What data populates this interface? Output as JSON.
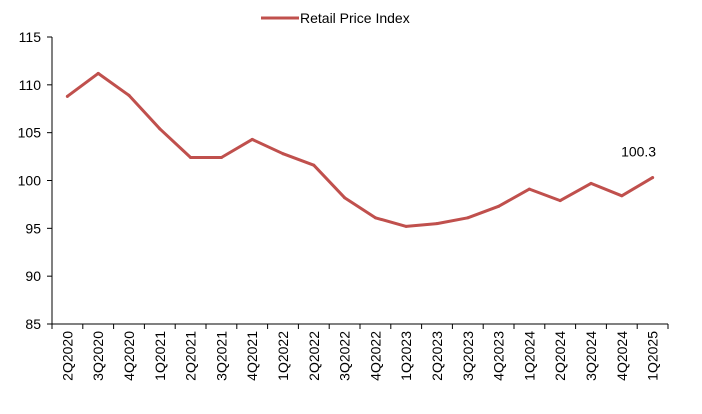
{
  "chart_data": {
    "type": "line",
    "title": "",
    "xlabel": "",
    "ylabel": "",
    "categories": [
      "2Q2020",
      "3Q2020",
      "4Q2020",
      "1Q2021",
      "2Q2021",
      "3Q2021",
      "4Q2021",
      "1Q2022",
      "2Q2022",
      "3Q2022",
      "4Q2022",
      "1Q2023",
      "2Q2023",
      "3Q2023",
      "4Q2023",
      "1Q2024",
      "2Q2024",
      "3Q2024",
      "4Q2024",
      "1Q2025"
    ],
    "series": [
      {
        "name": "Retail Price Index",
        "color": "#C0504D",
        "values": [
          108.8,
          111.2,
          108.9,
          105.4,
          102.4,
          102.4,
          104.3,
          102.8,
          101.6,
          98.2,
          96.1,
          95.2,
          95.5,
          96.1,
          97.3,
          99.1,
          97.9,
          99.7,
          98.4,
          100.3
        ]
      }
    ],
    "ylim": [
      85,
      115
    ],
    "yticks": [
      85,
      90,
      95,
      100,
      105,
      110,
      115
    ],
    "grid": false,
    "legend_position": "top-center",
    "annotations": [
      {
        "series_index": 0,
        "point_index": 19,
        "text": "100.3"
      }
    ]
  }
}
